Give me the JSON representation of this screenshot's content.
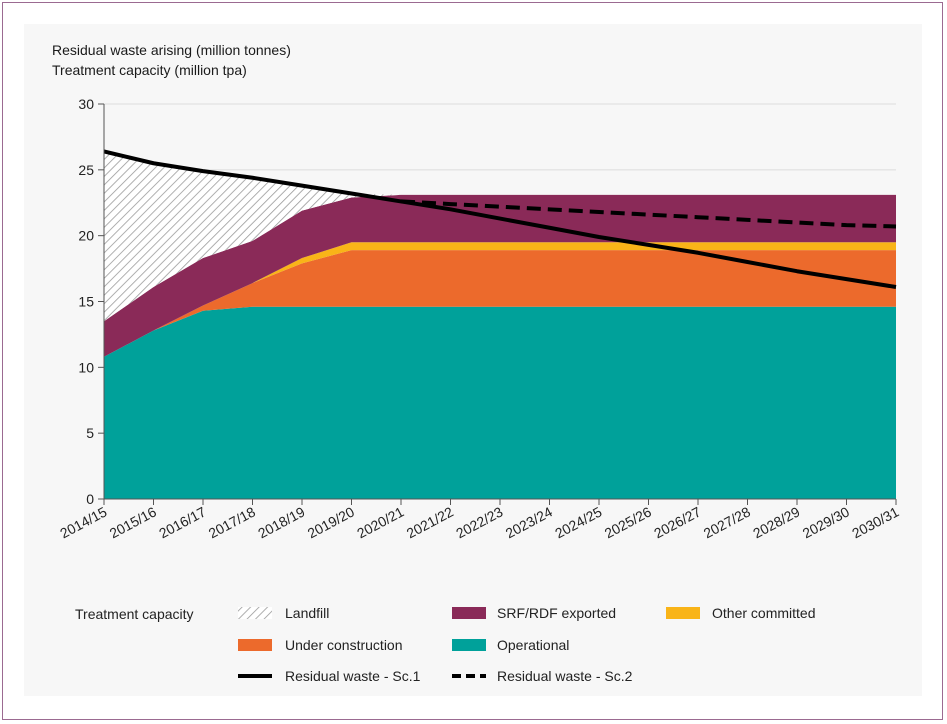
{
  "chart_data": {
    "type": "area",
    "ylabel_line1": "Residual waste arising  (million tonnes)",
    "ylabel_line2": "Treatment capacity  (million tpa)",
    "ylim": [
      0,
      30
    ],
    "yticks": [
      "0",
      "5",
      "10",
      "15",
      "20",
      "25",
      "30"
    ],
    "categories": [
      "2014/15",
      "2015/16",
      "2016/17",
      "2017/18",
      "2018/19",
      "2019/20",
      "2020/21",
      "2021/22",
      "2022/23",
      "2023/24",
      "2024/25",
      "2025/26",
      "2026/27",
      "2027/28",
      "2028/29",
      "2029/30",
      "2030/31"
    ],
    "grid": "horizontal",
    "stacked_series": [
      {
        "name": "Operational",
        "color": "#00a19a",
        "values": [
          10.8,
          12.8,
          14.3,
          14.6,
          14.6,
          14.6,
          14.6,
          14.6,
          14.6,
          14.6,
          14.6,
          14.6,
          14.6,
          14.6,
          14.6,
          14.6,
          14.6
        ]
      },
      {
        "name": "Under construction",
        "color": "#ec6a2c",
        "values": [
          0,
          0,
          0.4,
          1.8,
          3.3,
          4.3,
          4.3,
          4.3,
          4.3,
          4.3,
          4.3,
          4.3,
          4.3,
          4.3,
          4.3,
          4.3,
          4.3
        ]
      },
      {
        "name": "Other committed",
        "color": "#f9b418",
        "values": [
          0,
          0,
          0,
          0,
          0.4,
          0.6,
          0.6,
          0.6,
          0.6,
          0.6,
          0.6,
          0.6,
          0.6,
          0.6,
          0.6,
          0.6,
          0.6
        ]
      },
      {
        "name": "SRF/RDF exported",
        "color": "#8a2a58",
        "values": [
          2.7,
          3.3,
          3.6,
          3.2,
          3.6,
          3.4,
          3.6,
          3.6,
          3.6,
          3.6,
          3.6,
          3.6,
          3.6,
          3.6,
          3.6,
          3.6,
          3.6
        ]
      },
      {
        "name": "Landfill",
        "color": "#cccccc",
        "values": [
          12.9,
          9.4,
          6.7,
          4.9,
          2.0,
          0.3,
          0,
          0,
          0,
          0,
          0,
          0,
          0,
          0,
          0,
          0,
          0
        ]
      }
    ],
    "line_series": [
      {
        "name": "Residual waste - Sc.1",
        "style": "solid",
        "color": "#000000",
        "values": [
          26.4,
          25.5,
          24.9,
          24.4,
          23.8,
          23.2,
          22.6,
          22.0,
          21.3,
          20.6,
          19.9,
          19.3,
          18.7,
          18.0,
          17.3,
          16.7,
          16.1
        ]
      },
      {
        "name": "Residual waste - Sc.2",
        "style": "dashed",
        "color": "#000000",
        "values": [
          null,
          null,
          null,
          null,
          null,
          null,
          22.6,
          22.4,
          22.2,
          22.0,
          21.8,
          21.6,
          21.4,
          21.2,
          21.0,
          20.8,
          20.7
        ]
      }
    ],
    "legend": {
      "heading": "Treatment capacity",
      "items": [
        "Landfill",
        "SRF/RDF exported",
        "Other committed",
        "Under construction",
        "Operational",
        "Residual waste - Sc.1",
        "Residual waste - Sc.2"
      ]
    }
  }
}
